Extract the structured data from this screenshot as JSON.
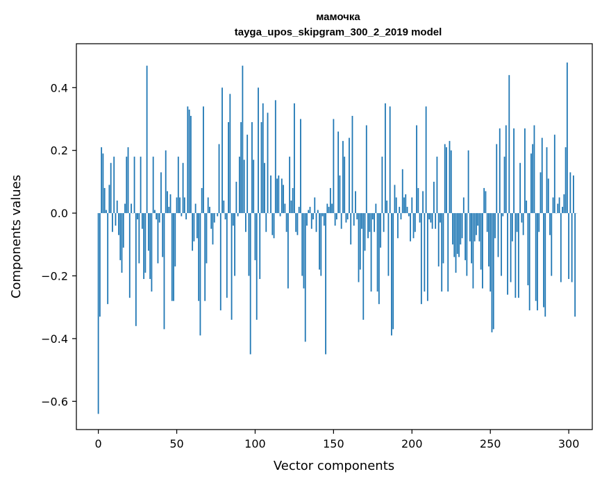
{
  "chart_data": {
    "type": "bar",
    "title": "мамочка",
    "subtitle": "tayga_upos_skipgram_300_2_2019 model",
    "xlabel": "Vector components",
    "ylabel": "Components values",
    "xlim": [
      -14,
      315
    ],
    "ylim": [
      -0.69,
      0.54
    ],
    "xticks": [
      0,
      50,
      100,
      150,
      200,
      250,
      300
    ],
    "yticks": [
      -0.6,
      -0.4,
      -0.2,
      0.0,
      0.2,
      0.4
    ],
    "ytick_labels": [
      "−0.6",
      "−0.4",
      "−0.2",
      "0.0",
      "0.2",
      "0.4"
    ],
    "grid": false,
    "bar_color": "#1f77b4",
    "series": [
      {
        "values": [
          -0.64,
          -0.33,
          0.21,
          0.19,
          0.08,
          0.01,
          -0.29,
          0.09,
          0.16,
          -0.06,
          0.18,
          -0.04,
          0.04,
          -0.07,
          -0.15,
          -0.19,
          -0.11,
          0.03,
          0.18,
          0.21,
          -0.27,
          0.03,
          0.0,
          0.18,
          -0.36,
          -0.02,
          -0.16,
          0.18,
          -0.05,
          -0.21,
          -0.19,
          0.47,
          -0.12,
          -0.21,
          -0.25,
          0.18,
          0.01,
          -0.02,
          -0.16,
          -0.03,
          0.13,
          -0.14,
          -0.37,
          0.2,
          0.07,
          0.02,
          0.06,
          -0.28,
          -0.28,
          -0.17,
          0.05,
          0.18,
          0.05,
          -0.01,
          0.16,
          0.05,
          -0.02,
          0.34,
          0.33,
          0.31,
          -0.12,
          -0.09,
          0.03,
          -0.08,
          -0.28,
          -0.39,
          0.08,
          0.34,
          -0.28,
          -0.16,
          0.05,
          0.02,
          -0.05,
          -0.1,
          -0.03,
          0.0,
          -0.01,
          0.22,
          -0.31,
          0.4,
          0.04,
          -0.02,
          -0.27,
          0.29,
          0.38,
          -0.34,
          -0.04,
          -0.2,
          0.1,
          -0.01,
          0.18,
          0.29,
          0.47,
          0.17,
          -0.06,
          0.25,
          -0.2,
          -0.45,
          0.29,
          0.17,
          -0.15,
          -0.34,
          0.4,
          -0.21,
          0.29,
          0.35,
          0.16,
          -0.06,
          0.32,
          0.0,
          0.12,
          -0.07,
          -0.08,
          0.36,
          0.11,
          0.12,
          -0.01,
          0.11,
          0.09,
          0.03,
          -0.06,
          -0.24,
          0.18,
          0.04,
          0.08,
          0.35,
          -0.06,
          -0.07,
          0.02,
          0.3,
          -0.2,
          -0.24,
          -0.41,
          -0.04,
          0.01,
          0.02,
          -0.05,
          -0.02,
          0.05,
          -0.06,
          0.01,
          -0.18,
          -0.2,
          -0.01,
          -0.04,
          -0.45,
          0.03,
          0.02,
          0.08,
          0.03,
          0.3,
          -0.04,
          -0.02,
          0.26,
          0.12,
          -0.05,
          0.23,
          0.18,
          -0.03,
          -0.02,
          0.24,
          -0.1,
          0.31,
          -0.04,
          0.07,
          -0.02,
          -0.22,
          -0.18,
          -0.05,
          -0.34,
          -0.12,
          0.28,
          -0.08,
          -0.06,
          -0.25,
          -0.02,
          -0.06,
          0.03,
          -0.25,
          -0.29,
          -0.11,
          0.18,
          -0.06,
          0.35,
          0.04,
          -0.2,
          0.34,
          -0.39,
          -0.37,
          0.09,
          0.05,
          -0.08,
          0.02,
          -0.02,
          0.14,
          0.05,
          0.06,
          0.02,
          -0.01,
          -0.09,
          0.05,
          -0.08,
          -0.06,
          0.28,
          0.08,
          -0.03,
          -0.29,
          0.07,
          -0.25,
          0.34,
          -0.28,
          -0.02,
          -0.03,
          -0.05,
          0.1,
          -0.05,
          0.18,
          -0.17,
          -0.03,
          -0.25,
          -0.16,
          0.22,
          0.21,
          -0.25,
          0.23,
          0.2,
          -0.1,
          -0.14,
          -0.19,
          -0.13,
          -0.14,
          -0.1,
          -0.08,
          0.05,
          -0.15,
          -0.2,
          0.2,
          -0.09,
          -0.16,
          -0.24,
          -0.09,
          -0.07,
          -0.04,
          -0.09,
          -0.18,
          -0.24,
          0.08,
          0.07,
          -0.06,
          -0.17,
          -0.25,
          -0.38,
          -0.37,
          -0.08,
          0.22,
          -0.14,
          0.27,
          -0.2,
          -0.01,
          0.18,
          0.28,
          -0.26,
          0.44,
          -0.22,
          -0.09,
          0.27,
          -0.27,
          -0.06,
          -0.27,
          0.16,
          -0.03,
          -0.07,
          0.27,
          0.04,
          -0.23,
          -0.31,
          0.19,
          0.22,
          0.28,
          -0.28,
          -0.31,
          -0.06,
          0.13,
          0.24,
          -0.3,
          -0.33,
          0.21,
          0.11,
          -0.07,
          -0.2,
          0.05,
          0.25,
          0.0,
          0.03,
          0.05,
          -0.22,
          0.02,
          0.06,
          0.21,
          0.48,
          -0.21,
          0.13,
          -0.22,
          0.12,
          -0.33,
          0.0
        ]
      }
    ]
  }
}
